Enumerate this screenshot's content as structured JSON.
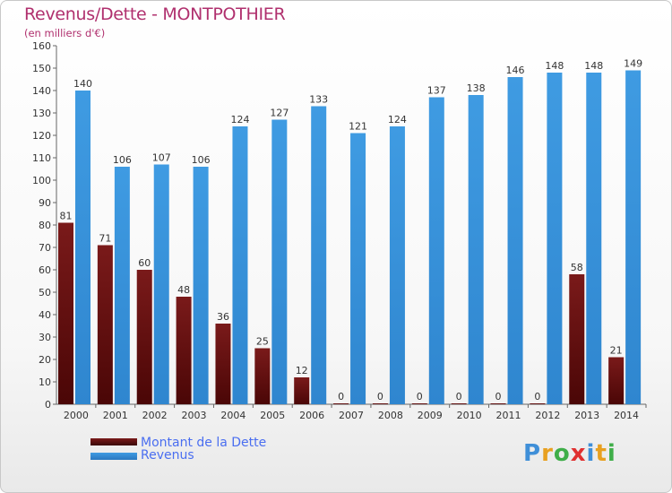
{
  "title": "Revenus/Dette - MONTPOTHIER",
  "subtitle": "(en milliers d'€)",
  "colors": {
    "debt": "#7a1a1a",
    "revenue": "#3f9be2",
    "title": "#b0306e",
    "legend_text": "#4a6ef0"
  },
  "legend": {
    "debt_label": "Montant de la Dette",
    "revenue_label": "Revenus"
  },
  "logo": {
    "text": "Proxiti",
    "letters": [
      "P",
      "r",
      "o",
      "x",
      "i",
      "t",
      "i"
    ],
    "colors": [
      "#3f8fd8",
      "#e8a020",
      "#3fae49",
      "#e03030",
      "#3f8fd8",
      "#e8a020",
      "#3fae49"
    ]
  },
  "chart_data": {
    "type": "bar",
    "categories": [
      "2000",
      "2001",
      "2002",
      "2003",
      "2004",
      "2005",
      "2006",
      "2007",
      "2008",
      "2009",
      "2010",
      "2011",
      "2012",
      "2013",
      "2014"
    ],
    "series": [
      {
        "name": "Montant de la Dette",
        "values": [
          81,
          71,
          60,
          48,
          36,
          25,
          12,
          0,
          0,
          0,
          0,
          0,
          0,
          58,
          21
        ]
      },
      {
        "name": "Revenus",
        "values": [
          140,
          106,
          107,
          106,
          124,
          127,
          133,
          121,
          124,
          137,
          138,
          146,
          148,
          148,
          149
        ]
      }
    ],
    "ylim": [
      0,
      160
    ],
    "yticks": [
      0,
      10,
      20,
      30,
      40,
      50,
      60,
      70,
      80,
      90,
      100,
      110,
      120,
      130,
      140,
      150,
      160
    ],
    "grid": false,
    "legend_position": "bottom-left"
  }
}
